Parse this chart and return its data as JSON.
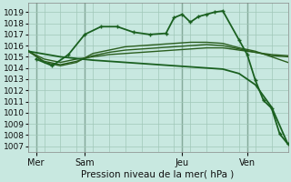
{
  "bg_color": "#c8e8e0",
  "grid_color": "#a0c8b8",
  "xlabel": "Pression niveau de la mer( hPa )",
  "ylim": [
    1006.5,
    1019.8
  ],
  "yticks": [
    1007,
    1008,
    1009,
    1010,
    1011,
    1012,
    1013,
    1014,
    1015,
    1016,
    1017,
    1018,
    1019
  ],
  "xlim": [
    0,
    16
  ],
  "day_labels": [
    "Mer",
    "Sam",
    "Jeu",
    "Ven"
  ],
  "day_positions": [
    0.5,
    3.5,
    9.5,
    13.5
  ],
  "vline_positions": [
    0.5,
    3.5,
    9.5,
    13.5
  ],
  "series": [
    {
      "x": [
        0,
        1,
        2,
        3,
        4,
        5,
        6,
        7,
        8,
        9,
        10,
        11,
        12,
        13,
        14,
        15,
        16
      ],
      "y": [
        1015.5,
        1014.8,
        1014.5,
        1014.8,
        1015.0,
        1015.2,
        1015.3,
        1015.4,
        1015.5,
        1015.6,
        1015.7,
        1015.8,
        1015.8,
        1015.6,
        1015.4,
        1015.2,
        1015.1
      ],
      "color": "#2a5e1e",
      "lw": 1.0,
      "marker": null,
      "ms": 0
    },
    {
      "x": [
        0,
        1,
        2,
        3,
        4,
        5,
        6,
        7,
        8,
        9,
        10,
        11,
        12,
        13,
        14,
        15,
        16
      ],
      "y": [
        1015.5,
        1014.6,
        1014.3,
        1014.6,
        1015.1,
        1015.4,
        1015.6,
        1015.7,
        1015.8,
        1015.9,
        1016.0,
        1016.1,
        1016.0,
        1015.7,
        1015.4,
        1015.1,
        1015.0
      ],
      "color": "#2a5e1e",
      "lw": 1.0,
      "marker": null,
      "ms": 0
    },
    {
      "x": [
        0,
        1,
        2,
        3,
        4,
        5,
        6,
        7,
        8,
        9,
        10,
        11,
        12,
        13,
        14,
        15,
        16
      ],
      "y": [
        1015.6,
        1014.5,
        1014.2,
        1014.5,
        1015.3,
        1015.6,
        1015.9,
        1016.0,
        1016.1,
        1016.2,
        1016.3,
        1016.3,
        1016.2,
        1015.8,
        1015.5,
        1015.0,
        1014.5
      ],
      "color": "#2a5e1e",
      "lw": 1.0,
      "marker": null,
      "ms": 0
    },
    {
      "x": [
        0.5,
        1.5,
        2.5,
        3.5,
        4.5,
        5.5,
        6.5,
        7.5,
        8.5,
        9.0,
        9.5,
        10.0,
        10.5,
        11.0,
        11.5,
        12.0,
        13.0,
        13.5,
        14.0,
        14.5,
        15.0,
        15.5,
        16.0
      ],
      "y": [
        1014.8,
        1014.2,
        1015.2,
        1017.0,
        1017.7,
        1017.7,
        1017.2,
        1017.0,
        1017.1,
        1018.5,
        1018.8,
        1018.1,
        1018.6,
        1018.8,
        1019.0,
        1019.1,
        1016.5,
        1015.2,
        1012.9,
        1011.1,
        1010.4,
        1008.1,
        1007.2
      ],
      "color": "#1a6020",
      "lw": 1.3,
      "marker": "+",
      "ms": 3.5
    },
    {
      "x": [
        0,
        2,
        4,
        6,
        8,
        10,
        12,
        13,
        14,
        15,
        16
      ],
      "y": [
        1015.5,
        1015.0,
        1014.7,
        1014.5,
        1014.3,
        1014.1,
        1013.9,
        1013.5,
        1012.5,
        1010.5,
        1007.2
      ],
      "color": "#1a6020",
      "lw": 1.3,
      "marker": null,
      "ms": 0
    }
  ]
}
